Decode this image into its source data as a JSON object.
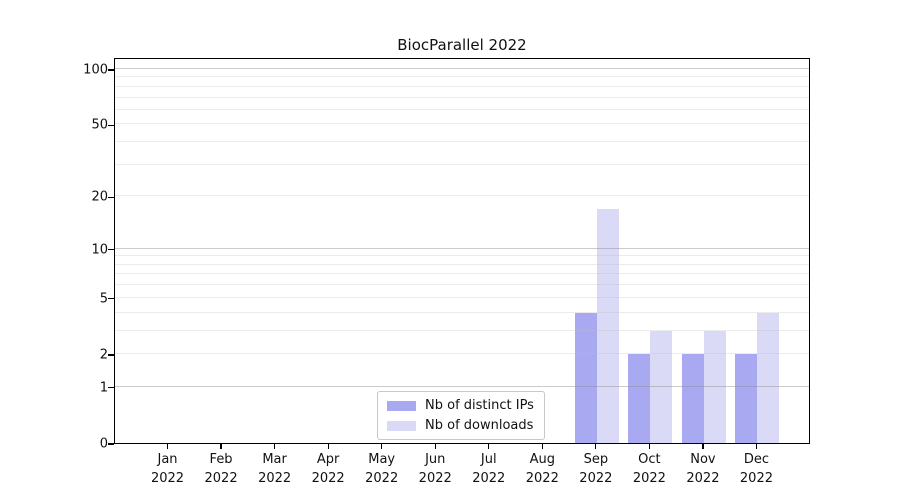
{
  "figure": {
    "title": "BiocParallel 2022"
  },
  "chart_data": {
    "type": "bar",
    "title": "BiocParallel 2022",
    "categories": [
      "Jan",
      "Feb",
      "Mar",
      "Apr",
      "May",
      "Jun",
      "Jul",
      "Aug",
      "Sep",
      "Oct",
      "Nov",
      "Dec"
    ],
    "category_year": "2022",
    "series": [
      {
        "name": "Nb of distinct IPs",
        "color": "#a9a9f2",
        "values": [
          0,
          0,
          0,
          0,
          0,
          0,
          0,
          0,
          4,
          2,
          2,
          2
        ]
      },
      {
        "name": "Nb of downloads",
        "color": "#dadaf7",
        "values": [
          0,
          0,
          0,
          0,
          0,
          0,
          0,
          0,
          17,
          3,
          3,
          4
        ]
      }
    ],
    "xlabel": "",
    "ylabel": "",
    "yscale": "log1p",
    "ylim": [
      0,
      116
    ],
    "yticks": [
      0,
      1,
      2,
      5,
      10,
      20,
      50,
      100
    ],
    "grid_major": [
      1,
      10,
      100
    ],
    "grid_minor": [
      2,
      3,
      4,
      5,
      6,
      7,
      8,
      9,
      20,
      30,
      40,
      50,
      60,
      70,
      80,
      90
    ],
    "grid": true,
    "legend_position": "inside-bottom-center"
  },
  "colors": {
    "bar_distinct_ips": "#a9a9f2",
    "bar_downloads": "#dadaf7",
    "grid_major": "#c9c9c9",
    "grid_minor": "#e9e9e9",
    "axis": "#000000",
    "background": "#ffffff"
  }
}
